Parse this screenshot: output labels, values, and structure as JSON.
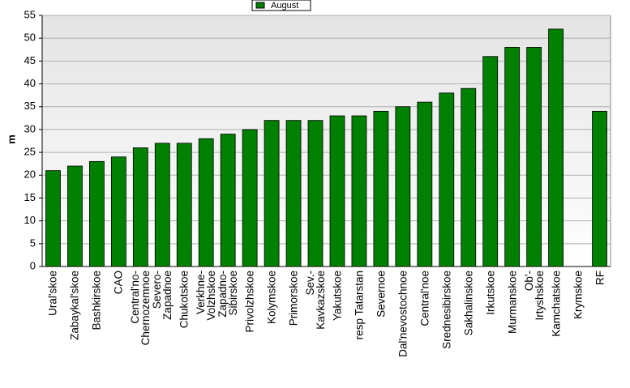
{
  "chart_data": {
    "type": "bar",
    "y_label": "m",
    "categories": [
      "Ural'skoe",
      "Zabaykal'skoe",
      "Bashkirskoe",
      "CAO",
      "Central'no-\nChernozemnoe",
      "Severo-\nZapadnoe",
      "Chukotskoe",
      "Verkhne-\nVolzhskoe",
      "Zapadno-\nSibirskoe",
      "Privolzhskoe",
      "Kolymskoe",
      "Primorskoe",
      "Sev.-\nKavkazskoe",
      "Yakutskoe",
      "resp Tatarstan",
      "Severnoe",
      "Dal'nevostochnoe",
      "Central'noe",
      "Srednesibirskoe",
      "Sakhalinskoe",
      "Irkutskoe",
      "Murmanskoe",
      "Ob'-\nIrtyshskoe",
      "Kamchatskoe",
      "Krymskoe",
      "RF"
    ],
    "series": [
      {
        "name": "August",
        "color": "#008000",
        "values": [
          21,
          22,
          23,
          24,
          26,
          27,
          27,
          28,
          29,
          30,
          32,
          32,
          32,
          33,
          33,
          34,
          35,
          36,
          38,
          39,
          46,
          48,
          48,
          52,
          null,
          34
        ]
      }
    ],
    "ylim": [
      0,
      55
    ],
    "yticks": [
      0,
      5,
      10,
      15,
      20,
      25,
      30,
      35,
      40,
      45,
      50,
      55
    ],
    "grid": true
  }
}
